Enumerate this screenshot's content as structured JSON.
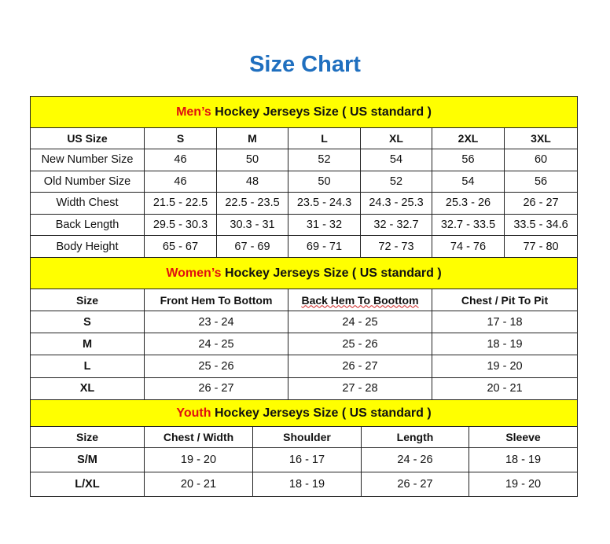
{
  "title": "Size Chart",
  "colors": {
    "title": "#1f6fbf",
    "header_bg": "#ffff00",
    "highlight": "#e01010"
  },
  "men": {
    "heading_highlight": "Men’s",
    "heading_rest": " Hockey Jerseys Size ( US standard )",
    "columns": [
      "US Size",
      "S",
      "M",
      "L",
      "XL",
      "2XL",
      "3XL"
    ],
    "rows": [
      [
        "New Number Size",
        "46",
        "50",
        "52",
        "54",
        "56",
        "60"
      ],
      [
        "Old Number Size",
        "46",
        "48",
        "50",
        "52",
        "54",
        "56"
      ],
      [
        "Width Chest",
        "21.5 - 22.5",
        "22.5 - 23.5",
        "23.5 - 24.3",
        "24.3 - 25.3",
        "25.3 - 26",
        "26 - 27"
      ],
      [
        "Back Length",
        "29.5 - 30.3",
        "30.3 - 31",
        "31 - 32",
        "32 - 32.7",
        "32.7 - 33.5",
        "33.5 - 34.6"
      ],
      [
        "Body Height",
        "65 - 67",
        "67 - 69",
        "69 - 71",
        "72 - 73",
        "74 - 76",
        "77 - 80"
      ]
    ]
  },
  "women": {
    "heading_highlight": "Women’s",
    "heading_rest": " Hockey Jerseys Size ( US standard )",
    "columns": [
      "Size",
      "Front Hem To Bottom",
      "Back Hem To Boottom",
      "Chest / Pit To Pit"
    ],
    "rows": [
      [
        "S",
        "23 - 24",
        "24 - 25",
        "17 - 18"
      ],
      [
        "M",
        "24 - 25",
        "25 - 26",
        "18 - 19"
      ],
      [
        "L",
        "25 - 26",
        "26 - 27",
        "19 - 20"
      ],
      [
        "XL",
        "26 - 27",
        "27 - 28",
        "20 - 21"
      ]
    ]
  },
  "youth": {
    "heading_highlight": "Youth",
    "heading_rest": " Hockey Jerseys Size ( US standard )",
    "columns": [
      "Size",
      "Chest / Width",
      "Shoulder",
      "Length",
      "Sleeve"
    ],
    "rows": [
      [
        "S/M",
        "19 - 20",
        "16 - 17",
        "24 - 26",
        "18 - 19"
      ],
      [
        "L/XL",
        "20 - 21",
        "18 - 19",
        "26 - 27",
        "19 - 20"
      ]
    ]
  }
}
